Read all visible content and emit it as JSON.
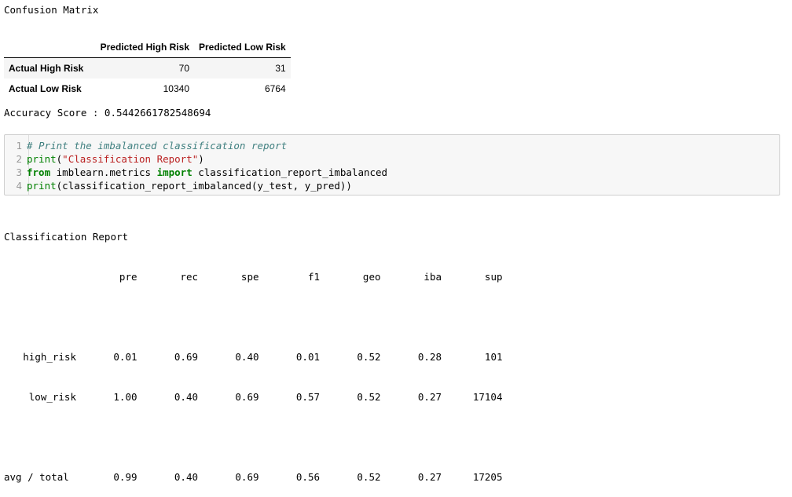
{
  "confusion_matrix": {
    "title": "Confusion Matrix",
    "columns": [
      "Predicted High Risk",
      "Predicted Low Risk"
    ],
    "rows": [
      {
        "label": "Actual High Risk",
        "values": [
          "70",
          "31"
        ]
      },
      {
        "label": "Actual Low Risk",
        "values": [
          "10340",
          "6764"
        ]
      }
    ]
  },
  "accuracy_text": "Accuracy Score : 0.5442661782548694",
  "code_cell": {
    "line_numbers": [
      "1",
      "2",
      "3",
      "4"
    ],
    "line1_comment": "# Print the imbalanced classification report",
    "line2_fn": "print",
    "line2_open": "(",
    "line2_string": "\"Classification Report\"",
    "line2_close": ")",
    "line3_from": "from",
    "line3_module": " imblearn.metrics ",
    "line3_import": "import",
    "line3_name": " classification_report_imbalanced",
    "line4_fn": "print",
    "line4_rest": "(classification_report_imbalanced(y_test, y_pred))"
  },
  "report": {
    "title": "Classification Report",
    "headers": [
      "pre",
      "rec",
      "spe",
      "f1",
      "geo",
      "iba",
      "sup"
    ],
    "rows": [
      {
        "label": "high_risk",
        "values": [
          "0.01",
          "0.69",
          "0.40",
          "0.01",
          "0.52",
          "0.28",
          "101"
        ]
      },
      {
        "label": "low_risk",
        "values": [
          "1.00",
          "0.40",
          "0.69",
          "0.57",
          "0.52",
          "0.27",
          "17104"
        ]
      }
    ],
    "total": {
      "label": "avg / total",
      "values": [
        "0.99",
        "0.40",
        "0.69",
        "0.56",
        "0.52",
        "0.27",
        "17205"
      ]
    }
  }
}
